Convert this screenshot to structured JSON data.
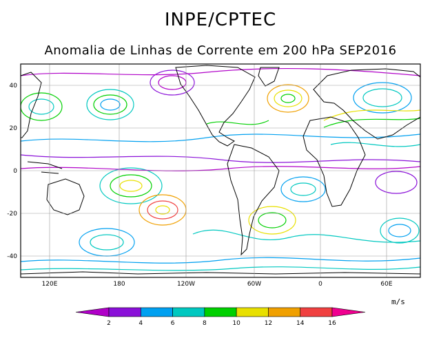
{
  "header": {
    "title": "INPE/CPTEC",
    "subtitle": "Anomalia de Linhas de Corrente em 200 hPa SEP2016"
  },
  "map": {
    "lat_ticks": [
      "40",
      "20",
      "0",
      "-20",
      "-40"
    ],
    "lon_ticks": [
      "120E",
      "180",
      "120W",
      "60W",
      "0",
      "60E"
    ],
    "grid": true
  },
  "colorbar": {
    "unit": "m/s",
    "labels": [
      "2",
      "4",
      "6",
      "8",
      "10",
      "12",
      "14",
      "16"
    ],
    "colors": [
      "#b000c8",
      "#8a10d8",
      "#00a0f0",
      "#00c8c0",
      "#00d000",
      "#e8e000",
      "#f0a000",
      "#f04040",
      "#f00090"
    ]
  }
}
